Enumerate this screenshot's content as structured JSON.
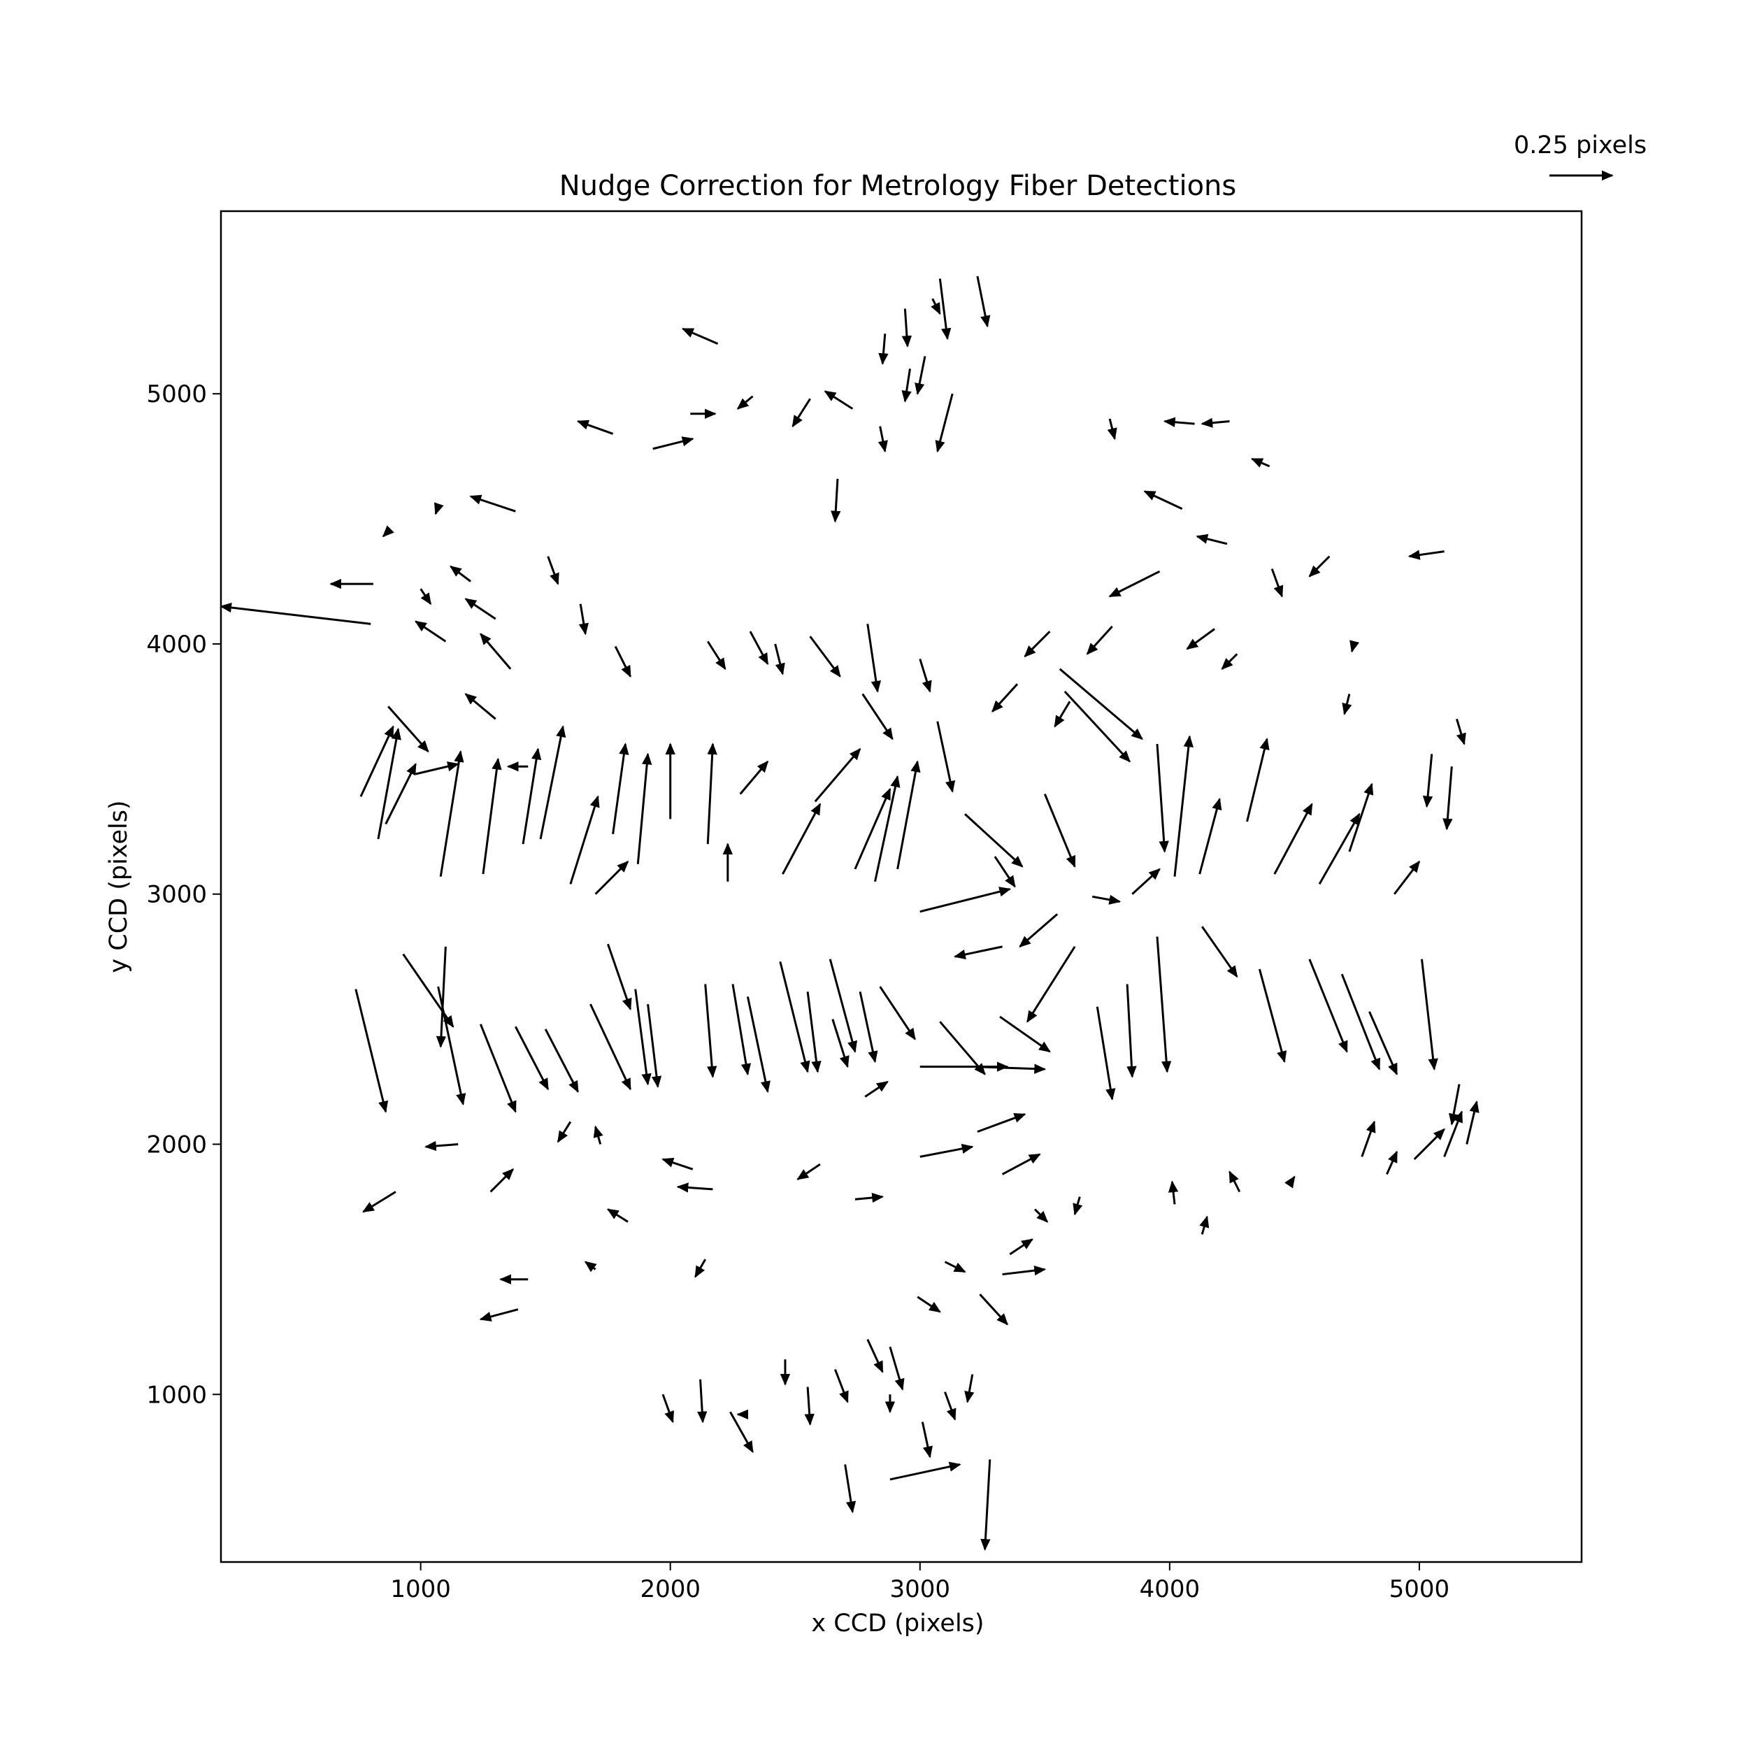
{
  "chart_data": {
    "type": "quiver",
    "title": "Nudge Correction for Metrology Fiber Detections",
    "xlabel": "x CCD (pixels)",
    "ylabel": "y CCD (pixels)",
    "xlim": [
      200,
      5650
    ],
    "ylim": [
      330,
      5730
    ],
    "xticks": [
      1000,
      2000,
      3000,
      4000,
      5000
    ],
    "yticks": [
      1000,
      2000,
      3000,
      4000,
      5000
    ],
    "grid": false,
    "quiver_key": {
      "label": "0.25 pixels",
      "length_pixels": 0.25
    },
    "vectors": [
      {
        "x": 800,
        "y": 4080,
        "dx": -600,
        "dy": 70
      },
      {
        "x": 810,
        "y": 4240,
        "dx": -170,
        "dy": 0
      },
      {
        "x": 1000,
        "y": 4220,
        "dx": 40,
        "dy": -60
      },
      {
        "x": 1100,
        "y": 4010,
        "dx": -120,
        "dy": 80
      },
      {
        "x": 1300,
        "y": 4100,
        "dx": -120,
        "dy": 80
      },
      {
        "x": 1200,
        "y": 4250,
        "dx": -80,
        "dy": 60
      },
      {
        "x": 1360,
        "y": 3900,
        "dx": -120,
        "dy": 140
      },
      {
        "x": 1300,
        "y": 3700,
        "dx": -120,
        "dy": 100
      },
      {
        "x": 1430,
        "y": 3510,
        "dx": -80,
        "dy": 0
      },
      {
        "x": 870,
        "y": 3750,
        "dx": 160,
        "dy": -180
      },
      {
        "x": 760,
        "y": 3390,
        "dx": 130,
        "dy": 280
      },
      {
        "x": 830,
        "y": 3220,
        "dx": 80,
        "dy": 440
      },
      {
        "x": 860,
        "y": 3280,
        "dx": 120,
        "dy": 240
      },
      {
        "x": 980,
        "y": 3480,
        "dx": 170,
        "dy": 40
      },
      {
        "x": 1080,
        "y": 3070,
        "dx": 80,
        "dy": 500
      },
      {
        "x": 1250,
        "y": 3080,
        "dx": 60,
        "dy": 460
      },
      {
        "x": 1410,
        "y": 3200,
        "dx": 60,
        "dy": 380
      },
      {
        "x": 1480,
        "y": 3220,
        "dx": 90,
        "dy": 450
      },
      {
        "x": 1600,
        "y": 3040,
        "dx": 110,
        "dy": 350
      },
      {
        "x": 1700,
        "y": 3000,
        "dx": 130,
        "dy": 130
      },
      {
        "x": 1770,
        "y": 3240,
        "dx": 50,
        "dy": 360
      },
      {
        "x": 1870,
        "y": 3120,
        "dx": 40,
        "dy": 440
      },
      {
        "x": 2000,
        "y": 3300,
        "dx": 0,
        "dy": 300
      },
      {
        "x": 2150,
        "y": 3200,
        "dx": 20,
        "dy": 400
      },
      {
        "x": 2230,
        "y": 3050,
        "dx": 0,
        "dy": 150
      },
      {
        "x": 2280,
        "y": 3400,
        "dx": 110,
        "dy": 130
      },
      {
        "x": 2450,
        "y": 3080,
        "dx": 150,
        "dy": 280
      },
      {
        "x": 2580,
        "y": 3370,
        "dx": 180,
        "dy": 210
      },
      {
        "x": 2740,
        "y": 3100,
        "dx": 140,
        "dy": 320
      },
      {
        "x": 2820,
        "y": 3050,
        "dx": 90,
        "dy": 420
      },
      {
        "x": 2910,
        "y": 3100,
        "dx": 80,
        "dy": 430
      },
      {
        "x": 3000,
        "y": 2930,
        "dx": 360,
        "dy": 90
      },
      {
        "x": 3070,
        "y": 3690,
        "dx": 60,
        "dy": -280
      },
      {
        "x": 3180,
        "y": 3320,
        "dx": 230,
        "dy": -210
      },
      {
        "x": 3300,
        "y": 3150,
        "dx": 80,
        "dy": -120
      },
      {
        "x": 3500,
        "y": 3400,
        "dx": 120,
        "dy": -290
      },
      {
        "x": 3560,
        "y": 3900,
        "dx": 330,
        "dy": -280
      },
      {
        "x": 3580,
        "y": 3810,
        "dx": 260,
        "dy": -280
      },
      {
        "x": 3690,
        "y": 2990,
        "dx": 110,
        "dy": -20
      },
      {
        "x": 3850,
        "y": 3000,
        "dx": 110,
        "dy": 100
      },
      {
        "x": 3950,
        "y": 3600,
        "dx": 30,
        "dy": -430
      },
      {
        "x": 4020,
        "y": 3070,
        "dx": 60,
        "dy": 560
      },
      {
        "x": 4120,
        "y": 3080,
        "dx": 80,
        "dy": 300
      },
      {
        "x": 4310,
        "y": 3290,
        "dx": 80,
        "dy": 330
      },
      {
        "x": 4420,
        "y": 3080,
        "dx": 150,
        "dy": 280
      },
      {
        "x": 4600,
        "y": 3040,
        "dx": 160,
        "dy": 280
      },
      {
        "x": 4720,
        "y": 3170,
        "dx": 90,
        "dy": 270
      },
      {
        "x": 4900,
        "y": 3000,
        "dx": 100,
        "dy": 130
      },
      {
        "x": 5050,
        "y": 3560,
        "dx": -20,
        "dy": -210
      },
      {
        "x": 5130,
        "y": 3510,
        "dx": -20,
        "dy": -250
      },
      {
        "x": 5150,
        "y": 3700,
        "dx": 30,
        "dy": -100
      },
      {
        "x": 740,
        "y": 2620,
        "dx": 120,
        "dy": -490
      },
      {
        "x": 930,
        "y": 2760,
        "dx": 200,
        "dy": -290
      },
      {
        "x": 1100,
        "y": 2790,
        "dx": -20,
        "dy": -400
      },
      {
        "x": 1070,
        "y": 2630,
        "dx": 100,
        "dy": -470
      },
      {
        "x": 1240,
        "y": 2480,
        "dx": 140,
        "dy": -350
      },
      {
        "x": 1380,
        "y": 2470,
        "dx": 130,
        "dy": -250
      },
      {
        "x": 1500,
        "y": 2460,
        "dx": 130,
        "dy": -250
      },
      {
        "x": 1680,
        "y": 2560,
        "dx": 160,
        "dy": -340
      },
      {
        "x": 1750,
        "y": 2800,
        "dx": 90,
        "dy": -260
      },
      {
        "x": 1860,
        "y": 2620,
        "dx": 50,
        "dy": -380
      },
      {
        "x": 1910,
        "y": 2560,
        "dx": 40,
        "dy": -330
      },
      {
        "x": 2140,
        "y": 2640,
        "dx": 30,
        "dy": -370
      },
      {
        "x": 2250,
        "y": 2640,
        "dx": 60,
        "dy": -360
      },
      {
        "x": 2310,
        "y": 2590,
        "dx": 80,
        "dy": -380
      },
      {
        "x": 2440,
        "y": 2730,
        "dx": 110,
        "dy": -440
      },
      {
        "x": 2550,
        "y": 2610,
        "dx": 40,
        "dy": -320
      },
      {
        "x": 2640,
        "y": 2740,
        "dx": 100,
        "dy": -370
      },
      {
        "x": 2760,
        "y": 2610,
        "dx": 60,
        "dy": -280
      },
      {
        "x": 3080,
        "y": 2490,
        "dx": 180,
        "dy": -210
      },
      {
        "x": 3330,
        "y": 2790,
        "dx": -190,
        "dy": -40
      },
      {
        "x": 3320,
        "y": 2510,
        "dx": 200,
        "dy": -140
      },
      {
        "x": 3550,
        "y": 2920,
        "dx": -150,
        "dy": -130
      },
      {
        "x": 3620,
        "y": 2790,
        "dx": -190,
        "dy": -300
      },
      {
        "x": 3710,
        "y": 2550,
        "dx": 60,
        "dy": -370
      },
      {
        "x": 3830,
        "y": 2640,
        "dx": 20,
        "dy": -370
      },
      {
        "x": 3950,
        "y": 2830,
        "dx": 40,
        "dy": -540
      },
      {
        "x": 4130,
        "y": 2870,
        "dx": 140,
        "dy": -200
      },
      {
        "x": 4360,
        "y": 2700,
        "dx": 100,
        "dy": -370
      },
      {
        "x": 4560,
        "y": 2740,
        "dx": 150,
        "dy": -370
      },
      {
        "x": 4690,
        "y": 2680,
        "dx": 150,
        "dy": -380
      },
      {
        "x": 4800,
        "y": 2530,
        "dx": 110,
        "dy": -250
      },
      {
        "x": 5010,
        "y": 2740,
        "dx": 50,
        "dy": -440
      },
      {
        "x": 5160,
        "y": 2240,
        "dx": -30,
        "dy": -160
      },
      {
        "x": 5190,
        "y": 2000,
        "dx": 40,
        "dy": 170
      },
      {
        "x": 5100,
        "y": 1950,
        "dx": 70,
        "dy": 180
      },
      {
        "x": 4980,
        "y": 1940,
        "dx": 120,
        "dy": 120
      },
      {
        "x": 4870,
        "y": 1880,
        "dx": 40,
        "dy": 90
      },
      {
        "x": 4770,
        "y": 1950,
        "dx": 50,
        "dy": 140
      },
      {
        "x": 4480,
        "y": 1840,
        "dx": 20,
        "dy": 30
      },
      {
        "x": 4280,
        "y": 1810,
        "dx": -40,
        "dy": 80
      },
      {
        "x": 4130,
        "y": 1640,
        "dx": 20,
        "dy": 70
      },
      {
        "x": 4020,
        "y": 1760,
        "dx": -10,
        "dy": 90
      },
      {
        "x": 3640,
        "y": 1790,
        "dx": -20,
        "dy": -70
      },
      {
        "x": 3460,
        "y": 1740,
        "dx": 50,
        "dy": -50
      },
      {
        "x": 3330,
        "y": 1480,
        "dx": 170,
        "dy": 20
      },
      {
        "x": 3360,
        "y": 1560,
        "dx": 90,
        "dy": 60
      },
      {
        "x": 3240,
        "y": 1400,
        "dx": 110,
        "dy": -120
      },
      {
        "x": 3100,
        "y": 1530,
        "dx": 80,
        "dy": -40
      },
      {
        "x": 2990,
        "y": 1390,
        "dx": 90,
        "dy": -60
      },
      {
        "x": 2880,
        "y": 1190,
        "dx": 50,
        "dy": -170
      },
      {
        "x": 2880,
        "y": 1000,
        "dx": 0,
        "dy": -70
      },
      {
        "x": 3010,
        "y": 890,
        "dx": 30,
        "dy": -140
      },
      {
        "x": 2880,
        "y": 660,
        "dx": 280,
        "dy": 60
      },
      {
        "x": 3280,
        "y": 740,
        "dx": -20,
        "dy": -360
      },
      {
        "x": 3210,
        "y": 1080,
        "dx": -20,
        "dy": -110
      },
      {
        "x": 3100,
        "y": 1010,
        "dx": 40,
        "dy": -110
      },
      {
        "x": 2790,
        "y": 1220,
        "dx": 60,
        "dy": -130
      },
      {
        "x": 2660,
        "y": 1100,
        "dx": 50,
        "dy": -130
      },
      {
        "x": 2700,
        "y": 720,
        "dx": 30,
        "dy": -190
      },
      {
        "x": 2240,
        "y": 930,
        "dx": 90,
        "dy": -160
      },
      {
        "x": 2280,
        "y": 920,
        "dx": -10,
        "dy": 0
      },
      {
        "x": 2460,
        "y": 1140,
        "dx": 0,
        "dy": -100
      },
      {
        "x": 2550,
        "y": 1030,
        "dx": 10,
        "dy": -150
      },
      {
        "x": 1970,
        "y": 1000,
        "dx": 40,
        "dy": -110
      },
      {
        "x": 2120,
        "y": 1060,
        "dx": 10,
        "dy": -170
      },
      {
        "x": 1390,
        "y": 1340,
        "dx": -150,
        "dy": -40
      },
      {
        "x": 1430,
        "y": 1460,
        "dx": -110,
        "dy": 0
      },
      {
        "x": 1700,
        "y": 1500,
        "dx": -40,
        "dy": 30
      },
      {
        "x": 1830,
        "y": 1690,
        "dx": -80,
        "dy": 50
      },
      {
        "x": 900,
        "y": 1810,
        "dx": -130,
        "dy": -80
      },
      {
        "x": 1150,
        "y": 2000,
        "dx": -130,
        "dy": -10
      },
      {
        "x": 1280,
        "y": 1810,
        "dx": 90,
        "dy": 90
      },
      {
        "x": 1600,
        "y": 2090,
        "dx": -50,
        "dy": -80
      },
      {
        "x": 1720,
        "y": 2000,
        "dx": -20,
        "dy": 70
      },
      {
        "x": 2170,
        "y": 1820,
        "dx": -140,
        "dy": 10
      },
      {
        "x": 2090,
        "y": 1900,
        "dx": -120,
        "dy": 40
      },
      {
        "x": 2140,
        "y": 1540,
        "dx": -40,
        "dy": -70
      },
      {
        "x": 2600,
        "y": 1920,
        "dx": -90,
        "dy": -60
      },
      {
        "x": 2740,
        "y": 1780,
        "dx": 110,
        "dy": 10
      },
      {
        "x": 3000,
        "y": 1950,
        "dx": 210,
        "dy": 40
      },
      {
        "x": 3230,
        "y": 2050,
        "dx": 190,
        "dy": 70
      },
      {
        "x": 3330,
        "y": 1880,
        "dx": 150,
        "dy": 80
      },
      {
        "x": 3000,
        "y": 2310,
        "dx": 350,
        "dy": 0
      },
      {
        "x": 3220,
        "y": 2310,
        "dx": 280,
        "dy": -10
      },
      {
        "x": 2780,
        "y": 2190,
        "dx": 90,
        "dy": 60
      },
      {
        "x": 2840,
        "y": 2630,
        "dx": 140,
        "dy": -210
      },
      {
        "x": 2650,
        "y": 2500,
        "dx": 60,
        "dy": -190
      },
      {
        "x": 3000,
        "y": 3940,
        "dx": 40,
        "dy": -130
      },
      {
        "x": 2790,
        "y": 4080,
        "dx": 40,
        "dy": -270
      },
      {
        "x": 2770,
        "y": 3800,
        "dx": 120,
        "dy": -180
      },
      {
        "x": 2560,
        "y": 4030,
        "dx": 120,
        "dy": -160
      },
      {
        "x": 2420,
        "y": 4000,
        "dx": 30,
        "dy": -120
      },
      {
        "x": 2320,
        "y": 4050,
        "dx": 70,
        "dy": -130
      },
      {
        "x": 2150,
        "y": 4010,
        "dx": 70,
        "dy": -110
      },
      {
        "x": 1780,
        "y": 3990,
        "dx": 60,
        "dy": -120
      },
      {
        "x": 1640,
        "y": 4160,
        "dx": 20,
        "dy": -120
      },
      {
        "x": 1510,
        "y": 4350,
        "dx": 40,
        "dy": -110
      },
      {
        "x": 1380,
        "y": 4530,
        "dx": -180,
        "dy": 60
      },
      {
        "x": 1070,
        "y": 4550,
        "dx": -10,
        "dy": -30
      },
      {
        "x": 860,
        "y": 4440,
        "dx": -10,
        "dy": -10
      },
      {
        "x": 1930,
        "y": 4780,
        "dx": 160,
        "dy": 40
      },
      {
        "x": 1770,
        "y": 4840,
        "dx": -140,
        "dy": 50
      },
      {
        "x": 2080,
        "y": 4920,
        "dx": 100,
        "dy": 0
      },
      {
        "x": 2190,
        "y": 5200,
        "dx": -140,
        "dy": 60
      },
      {
        "x": 2330,
        "y": 4990,
        "dx": -60,
        "dy": -50
      },
      {
        "x": 2560,
        "y": 4980,
        "dx": -70,
        "dy": -110
      },
      {
        "x": 2730,
        "y": 4940,
        "dx": -110,
        "dy": 70
      },
      {
        "x": 2670,
        "y": 4660,
        "dx": -10,
        "dy": -170
      },
      {
        "x": 2840,
        "y": 4870,
        "dx": 20,
        "dy": -100
      },
      {
        "x": 2860,
        "y": 5240,
        "dx": -10,
        "dy": -120
      },
      {
        "x": 2960,
        "y": 5100,
        "dx": -20,
        "dy": -130
      },
      {
        "x": 3020,
        "y": 5150,
        "dx": -30,
        "dy": -150
      },
      {
        "x": 3130,
        "y": 5000,
        "dx": -60,
        "dy": -230
      },
      {
        "x": 3230,
        "y": 5470,
        "dx": 40,
        "dy": -200
      },
      {
        "x": 3080,
        "y": 5460,
        "dx": 30,
        "dy": -240
      },
      {
        "x": 3050,
        "y": 5380,
        "dx": 30,
        "dy": -60
      },
      {
        "x": 2940,
        "y": 5340,
        "dx": 10,
        "dy": -150
      },
      {
        "x": 3760,
        "y": 4900,
        "dx": 20,
        "dy": -80
      },
      {
        "x": 4100,
        "y": 4880,
        "dx": -120,
        "dy": 10
      },
      {
        "x": 4240,
        "y": 4890,
        "dx": -110,
        "dy": -10
      },
      {
        "x": 4400,
        "y": 4710,
        "dx": -70,
        "dy": 30
      },
      {
        "x": 4050,
        "y": 4540,
        "dx": -150,
        "dy": 70
      },
      {
        "x": 4230,
        "y": 4400,
        "dx": -120,
        "dy": 30
      },
      {
        "x": 4410,
        "y": 4300,
        "dx": 40,
        "dy": -110
      },
      {
        "x": 4640,
        "y": 4350,
        "dx": -80,
        "dy": -80
      },
      {
        "x": 5100,
        "y": 4370,
        "dx": -140,
        "dy": -20
      },
      {
        "x": 4740,
        "y": 4010,
        "dx": -10,
        "dy": -40
      },
      {
        "x": 4720,
        "y": 3800,
        "dx": -20,
        "dy": -80
      },
      {
        "x": 4270,
        "y": 3960,
        "dx": -60,
        "dy": -60
      },
      {
        "x": 4180,
        "y": 4060,
        "dx": -110,
        "dy": -80
      },
      {
        "x": 3960,
        "y": 4290,
        "dx": -200,
        "dy": -100
      },
      {
        "x": 3770,
        "y": 4070,
        "dx": -100,
        "dy": -110
      },
      {
        "x": 3520,
        "y": 4050,
        "dx": -100,
        "dy": -100
      },
      {
        "x": 3600,
        "y": 3770,
        "dx": -60,
        "dy": -100
      },
      {
        "x": 3390,
        "y": 3840,
        "dx": -100,
        "dy": -110
      }
    ]
  }
}
